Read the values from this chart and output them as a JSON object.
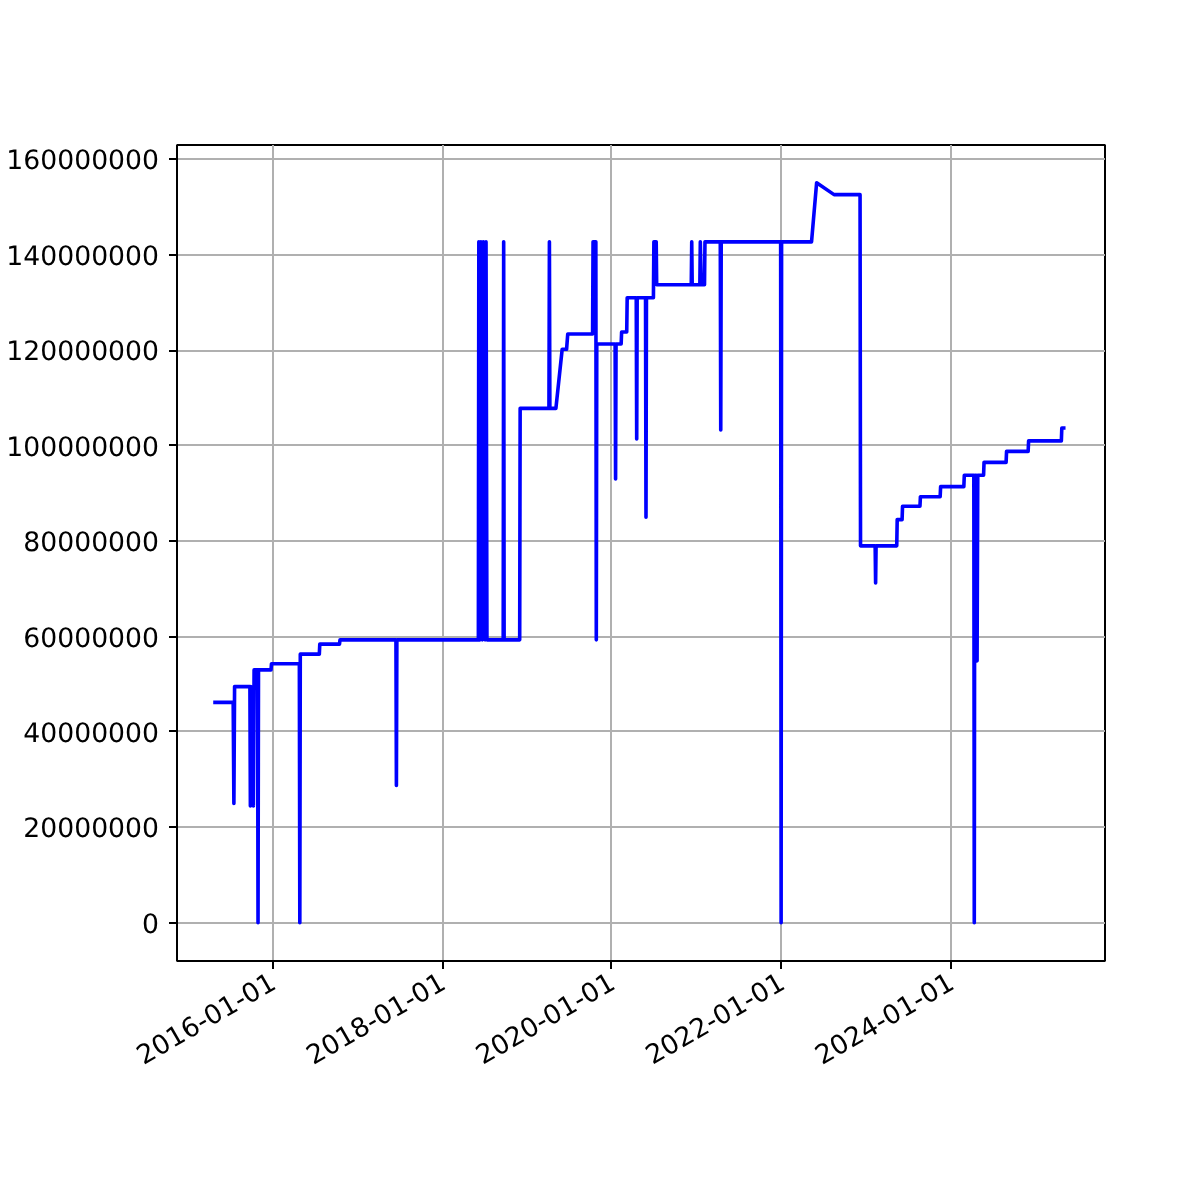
{
  "chart_data": {
    "type": "line",
    "xlim": [
      "2014-11-15",
      "2025-10-25"
    ],
    "ylim": [
      -8000000,
      163000000
    ],
    "xticks": [
      "2016-01-01",
      "2018-01-01",
      "2020-01-01",
      "2022-01-01",
      "2024-01-01"
    ],
    "yticks": [
      0,
      20000000,
      40000000,
      60000000,
      80000000,
      100000000,
      120000000,
      140000000,
      160000000
    ],
    "grid": true,
    "series": [
      {
        "color": "#0000ff",
        "x": [
          "2015-04-20",
          "2015-07-15",
          "2015-07-18",
          "2015-07-21",
          "2015-09-25",
          "2015-09-27",
          "2015-09-29",
          "2015-10-10",
          "2015-10-13",
          "2015-10-28",
          "2015-10-30",
          "2015-11-01",
          "2015-12-25",
          "2015-12-27",
          "2016-04-25",
          "2016-04-27",
          "2016-04-29",
          "2016-07-20",
          "2016-07-22",
          "2016-10-15",
          "2016-10-17",
          "2017-06-15",
          "2017-06-17",
          "2017-06-19",
          "2018-06-05",
          "2018-06-07",
          "2018-06-12",
          "2018-06-16",
          "2018-06-22",
          "2018-06-26",
          "2018-07-04",
          "2018-07-08",
          "2018-07-12",
          "2018-09-20",
          "2018-09-22",
          "2018-09-24",
          "2018-11-30",
          "2018-12-02",
          "2019-04-05",
          "2019-04-07",
          "2019-04-09",
          "2019-05-05",
          "2019-06-01",
          "2019-06-20",
          "2019-06-25",
          "2019-10-10",
          "2019-10-12",
          "2019-10-24",
          "2019-10-26",
          "2019-10-28",
          "2020-01-15",
          "2020-01-17",
          "2020-01-19",
          "2020-02-10",
          "2020-02-12",
          "2020-03-05",
          "2020-03-07",
          "2020-04-15",
          "2020-04-17",
          "2020-04-19",
          "2020-05-25",
          "2020-05-27",
          "2020-05-29",
          "2020-06-28",
          "2020-06-30",
          "2020-07-10",
          "2020-07-12",
          "2020-12-08",
          "2020-12-10",
          "2020-12-12",
          "2021-01-14",
          "2021-01-16",
          "2021-01-20",
          "2021-02-03",
          "2021-02-05",
          "2021-04-12",
          "2021-04-14",
          "2021-04-16",
          "2021-12-28",
          "2021-12-30",
          "2022-01-01",
          "2022-05-10",
          "2022-06-01",
          "2022-08-15",
          "2022-12-05",
          "2022-12-07",
          "2023-02-08",
          "2023-02-10",
          "2023-02-12",
          "2023-05-12",
          "2023-05-14",
          "2023-06-04",
          "2023-06-06",
          "2023-08-20",
          "2023-08-22",
          "2023-11-15",
          "2023-11-17",
          "2024-02-25",
          "2024-02-27",
          "2024-04-08",
          "2024-04-10",
          "2024-04-12",
          "2024-04-16",
          "2024-04-18",
          "2024-04-22",
          "2024-04-25",
          "2024-05-20",
          "2024-05-22",
          "2024-08-25",
          "2024-08-27",
          "2024-11-28",
          "2024-11-30",
          "2025-04-20",
          "2025-04-22",
          "2025-05-08"
        ],
        "values": [
          46200000,
          46200000,
          25000000,
          49500000,
          49500000,
          24500000,
          49500000,
          24500000,
          53000000,
          53000000,
          0,
          53000000,
          53000000,
          54300000,
          54300000,
          0,
          56300000,
          56300000,
          58400000,
          58400000,
          59300000,
          59300000,
          28800000,
          59300000,
          59300000,
          142700000,
          59300000,
          142700000,
          59300000,
          142700000,
          59300000,
          142700000,
          59300000,
          59300000,
          142700000,
          59300000,
          59300000,
          107800000,
          107800000,
          142700000,
          107800000,
          107800000,
          120200000,
          120200000,
          123400000,
          123400000,
          142700000,
          142700000,
          59300000,
          121300000,
          121300000,
          93000000,
          121300000,
          121300000,
          123800000,
          123800000,
          131000000,
          131000000,
          101400000,
          131000000,
          131000000,
          85000000,
          131000000,
          131000000,
          142700000,
          142700000,
          133700000,
          133700000,
          142700000,
          133700000,
          133700000,
          142700000,
          133700000,
          133700000,
          142700000,
          142700000,
          103300000,
          142700000,
          142700000,
          0,
          142700000,
          142700000,
          155100000,
          152600000,
          152600000,
          79000000,
          79000000,
          71200000,
          79000000,
          79000000,
          84500000,
          84500000,
          87300000,
          87300000,
          89300000,
          89300000,
          91400000,
          91400000,
          93800000,
          93800000,
          0,
          93800000,
          54900000,
          93800000,
          54900000,
          93800000,
          93800000,
          96500000,
          96500000,
          98800000,
          98800000,
          101000000,
          101000000,
          103700000,
          103700000
        ]
      }
    ]
  }
}
